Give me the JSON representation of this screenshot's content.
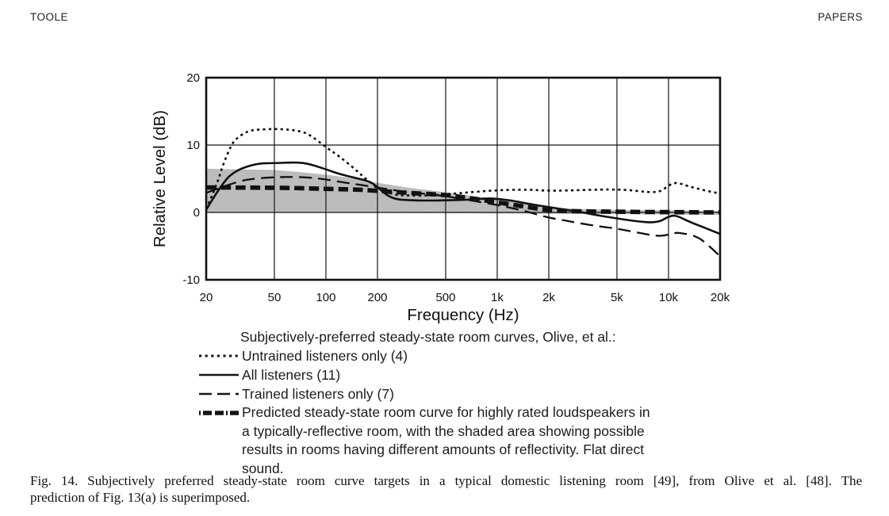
{
  "page": {
    "header_left": "TOOLE",
    "header_right": "PAPERS"
  },
  "chart_data": {
    "type": "line",
    "x_scale": "log",
    "xlabel": "Frequency (Hz)",
    "ylabel": "Relative Level (dB)",
    "xlim": [
      20,
      20000
    ],
    "ylim": [
      -10,
      20
    ],
    "grid": "on",
    "gridlines": {
      "x_values": [
        50,
        100,
        200,
        500,
        1000,
        2000,
        5000,
        10000
      ],
      "y_values": [
        10,
        0
      ]
    },
    "x_ticks": [
      {
        "value": 20,
        "label": "20"
      },
      {
        "value": 50,
        "label": "50"
      },
      {
        "value": 100,
        "label": "100"
      },
      {
        "value": 200,
        "label": "200"
      },
      {
        "value": 500,
        "label": "500"
      },
      {
        "value": 1000,
        "label": "1k"
      },
      {
        "value": 2000,
        "label": "2k"
      },
      {
        "value": 5000,
        "label": "5k"
      },
      {
        "value": 10000,
        "label": "10k"
      },
      {
        "value": 20000,
        "label": "20k"
      }
    ],
    "y_ticks": [
      {
        "value": 20,
        "label": "20"
      },
      {
        "value": 10,
        "label": "10"
      },
      {
        "value": 0,
        "label": "0"
      },
      {
        "value": -10,
        "label": "-10"
      }
    ],
    "shaded_band": {
      "name": "possible results in rooms with different reflectivity",
      "color": "#bcbcbc",
      "upper": [
        [
          20,
          6.5
        ],
        [
          30,
          6.4
        ],
        [
          50,
          6.3
        ],
        [
          70,
          6.0
        ],
        [
          100,
          5.6
        ],
        [
          150,
          5.0
        ],
        [
          200,
          4.4
        ],
        [
          300,
          3.7
        ],
        [
          500,
          3.0
        ],
        [
          700,
          2.5
        ],
        [
          1000,
          2.0
        ],
        [
          1500,
          1.3
        ],
        [
          2000,
          0.8
        ],
        [
          3000,
          0.5
        ],
        [
          5000,
          0.35
        ],
        [
          10000,
          0.3
        ],
        [
          20000,
          0.25
        ]
      ],
      "lower": [
        [
          20,
          0.0
        ],
        [
          200,
          -0.05
        ],
        [
          500,
          -0.1
        ],
        [
          2000,
          -0.2
        ],
        [
          20000,
          -0.35
        ]
      ]
    },
    "series": [
      {
        "name": "Untrained listeners only (4)",
        "style": "dotted",
        "points": [
          [
            20,
            0.5
          ],
          [
            23,
            4.0
          ],
          [
            25,
            7.0
          ],
          [
            28,
            10.0
          ],
          [
            30,
            11.0
          ],
          [
            35,
            12.1
          ],
          [
            40,
            12.3
          ],
          [
            50,
            12.4
          ],
          [
            60,
            12.3
          ],
          [
            70,
            12.1
          ],
          [
            80,
            11.6
          ],
          [
            100,
            9.7
          ],
          [
            120,
            8.3
          ],
          [
            150,
            6.3
          ],
          [
            170,
            5.0
          ],
          [
            200,
            3.6
          ],
          [
            250,
            2.6
          ],
          [
            300,
            2.5
          ],
          [
            400,
            2.5
          ],
          [
            500,
            2.7
          ],
          [
            700,
            3.0
          ],
          [
            1000,
            3.3
          ],
          [
            1500,
            3.4
          ],
          [
            2000,
            3.2
          ],
          [
            3000,
            3.3
          ],
          [
            4000,
            3.4
          ],
          [
            5000,
            3.4
          ],
          [
            6000,
            3.3
          ],
          [
            7000,
            3.1
          ],
          [
            8000,
            3.0
          ],
          [
            9000,
            3.1
          ],
          [
            10000,
            4.0
          ],
          [
            11000,
            4.5
          ],
          [
            13000,
            3.9
          ],
          [
            16000,
            3.3
          ],
          [
            20000,
            2.8
          ]
        ]
      },
      {
        "name": "All listeners (11)",
        "style": "solid",
        "points": [
          [
            20,
            0.4
          ],
          [
            25,
            4.5
          ],
          [
            30,
            6.3
          ],
          [
            40,
            7.3
          ],
          [
            50,
            7.3
          ],
          [
            60,
            7.4
          ],
          [
            70,
            7.4
          ],
          [
            80,
            7.2
          ],
          [
            100,
            6.4
          ],
          [
            120,
            5.7
          ],
          [
            150,
            5.1
          ],
          [
            180,
            4.6
          ],
          [
            200,
            3.8
          ],
          [
            220,
            2.8
          ],
          [
            250,
            2.0
          ],
          [
            300,
            1.8
          ],
          [
            400,
            1.75
          ],
          [
            500,
            1.8
          ],
          [
            700,
            1.9
          ],
          [
            900,
            2.1
          ],
          [
            1000,
            2.0
          ],
          [
            1200,
            1.8
          ],
          [
            1500,
            1.3
          ],
          [
            2000,
            0.8
          ],
          [
            2500,
            0.4
          ],
          [
            3000,
            0.1
          ],
          [
            4000,
            -0.5
          ],
          [
            5000,
            -0.9
          ],
          [
            6000,
            -1.2
          ],
          [
            7000,
            -1.4
          ],
          [
            8000,
            -1.5
          ],
          [
            9000,
            -1.3
          ],
          [
            10000,
            -0.6
          ],
          [
            11000,
            -0.4
          ],
          [
            13000,
            -1.3
          ],
          [
            16000,
            -2.2
          ],
          [
            20000,
            -3.2
          ]
        ]
      },
      {
        "name": "Trained listeners only (7)",
        "style": "long-dash",
        "points": [
          [
            20,
            2.9
          ],
          [
            30,
            4.6
          ],
          [
            40,
            5.1
          ],
          [
            60,
            5.3
          ],
          [
            80,
            5.2
          ],
          [
            100,
            4.9
          ],
          [
            130,
            4.4
          ],
          [
            160,
            4.1
          ],
          [
            200,
            3.7
          ],
          [
            250,
            3.3
          ],
          [
            300,
            3.0
          ],
          [
            400,
            2.7
          ],
          [
            500,
            2.4
          ],
          [
            700,
            1.8
          ],
          [
            1000,
            1.1
          ],
          [
            1300,
            0.5
          ],
          [
            1500,
            0.1
          ],
          [
            2000,
            -0.8
          ],
          [
            2500,
            -1.2
          ],
          [
            3000,
            -1.6
          ],
          [
            4000,
            -2.1
          ],
          [
            5000,
            -2.4
          ],
          [
            6000,
            -2.8
          ],
          [
            7000,
            -3.1
          ],
          [
            8000,
            -3.4
          ],
          [
            9000,
            -3.5
          ],
          [
            10000,
            -3.3
          ],
          [
            11000,
            -3.0
          ],
          [
            12000,
            -3.1
          ],
          [
            14000,
            -3.4
          ],
          [
            16000,
            -4.2
          ],
          [
            20000,
            -6.5
          ]
        ]
      },
      {
        "name": "Predicted steady-state room curve",
        "style": "heavy-dash",
        "points": [
          [
            20,
            3.7
          ],
          [
            50,
            3.7
          ],
          [
            100,
            3.5
          ],
          [
            150,
            3.4
          ],
          [
            200,
            3.2
          ],
          [
            300,
            2.9
          ],
          [
            500,
            2.6
          ],
          [
            700,
            2.1
          ],
          [
            1000,
            1.5
          ],
          [
            1500,
            0.8
          ],
          [
            2000,
            0.3
          ],
          [
            3000,
            0.15
          ],
          [
            5000,
            0.1
          ],
          [
            10000,
            0.05
          ],
          [
            20000,
            0.0
          ]
        ]
      }
    ]
  },
  "legend": {
    "title": "Subjectively-preferred steady-state room curves, Olive, et al.:",
    "entries": [
      {
        "label": "Untrained listeners only (4)",
        "style": "dotted"
      },
      {
        "label": "All listeners (11)",
        "style": "solid"
      },
      {
        "label": "Trained listeners only (7)",
        "style": "long-dash"
      },
      {
        "label": "Predicted steady-state room curve for highly rated loudspeakers in a typically-reflective room, with the shaded area showing possible results in rooms having different amounts of reflectivity.  Flat direct sound.",
        "style": "heavy-dash"
      }
    ]
  },
  "caption": {
    "line1": "Fig. 14.  Subjectively preferred steady-state room curve targets in a typical domestic listening room [49], from Olive et al. [48]. The",
    "line2": "prediction of Fig. 13(a) is superimposed."
  }
}
